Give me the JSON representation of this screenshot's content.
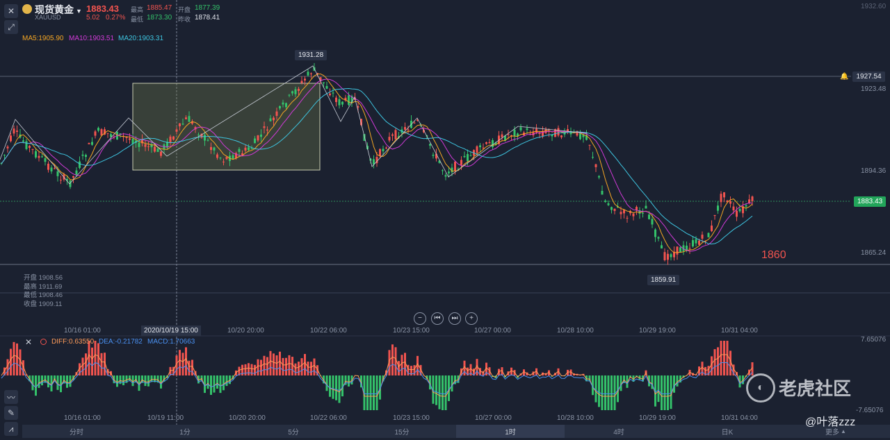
{
  "header": {
    "name": "现货黄金",
    "symbol": "XAUUSD",
    "price": "1883.43",
    "change": "5.02",
    "change_pct": "0.27%",
    "high_label": "最高",
    "high": "1885.47",
    "low_label": "最低",
    "low": "1873.30",
    "open_label": "开盘",
    "open": "1877.39",
    "prev_label": "昨收",
    "prev": "1878.41"
  },
  "ma": {
    "ma5": "MA5:1905.90",
    "ma10": "MA10:1903.51",
    "ma20": "MA20:1903.31"
  },
  "colors": {
    "up": "#f2544f",
    "down": "#34c26a",
    "ma5": "#f5a623",
    "ma10": "#d23ad8",
    "ma20": "#3ec5e0",
    "diff": "#ff9c5a",
    "dea": "#4a90f0"
  },
  "axis": {
    "top_clip": "1932.60",
    "y_labels": [
      "1923.48",
      "1894.36",
      "1865.24"
    ],
    "line_price": "1927.54",
    "current_price": "1883.43",
    "max_marker": "1931.28",
    "min_marker": "1859.91",
    "annotation": "1860"
  },
  "ohlc_box": {
    "open": "开盘 1908.56",
    "high": "最高 1911.69",
    "low": "最低 1908.46",
    "close": "收盘 1909.11"
  },
  "x_labels": [
    "10/16 01:00",
    "10/20 20:00",
    "10/22 06:00",
    "10/23 15:00",
    "10/27 00:00",
    "10/28 10:00",
    "10/29 19:00",
    "10/31 04:00"
  ],
  "crosshair_label": "2020/10/19 15:00",
  "macd": {
    "diff": "DIFF:0.63550",
    "dea": "DEA:-0.21782",
    "macd": "MACD:1.70663",
    "top": "7.65076",
    "bottom": "-7.65076",
    "x_labels": [
      "10/16 01:00",
      "10/19 11:00",
      "10/20 20:00",
      "10/22 06:00",
      "10/23 15:00",
      "10/27 00:00",
      "10/28 10:00",
      "10/29 19:00",
      "10/31 04:00"
    ]
  },
  "periods": [
    "分时",
    "1分",
    "5分",
    "15分",
    "1时",
    "4时",
    "日K",
    "更多"
  ],
  "active_period": 4,
  "watermark": {
    "brand": "老虎社区",
    "user": "@叶落zzz"
  },
  "icons": [
    "close-icon",
    "draw-tool-icon",
    "bell-icon",
    "chevron-down-icon"
  ]
}
